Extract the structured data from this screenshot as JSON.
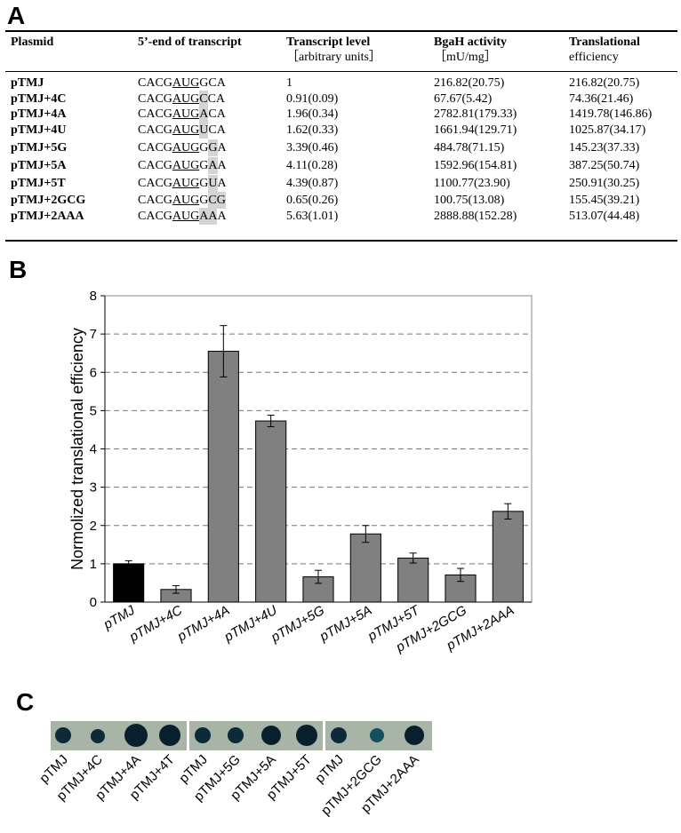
{
  "panel_labels": [
    "A",
    "B",
    "C"
  ],
  "table": {
    "header": [
      [
        "Plasmid"
      ],
      [
        "5’-end of transcript"
      ],
      [
        "Transcript level",
        "［arbitrary units］"
      ],
      [
        "BgaH activity",
        "［mU/mg］"
      ],
      [
        "Translational",
        "efficiency"
      ]
    ],
    "rows": [
      {
        "plasmid": "pTMJ",
        "sequence": [
          {
            "text": "CACG",
            "style": "plain"
          },
          {
            "text": "AUG",
            "style": "underline"
          },
          {
            "text": "GCA",
            "style": "plain"
          }
        ],
        "transcript_level": "1",
        "activity": "216.82(20.75)",
        "efficiency": "216.82(20.75)"
      },
      {
        "plasmid": "pTMJ+4C",
        "sequence": [
          {
            "text": "CACG",
            "style": "plain"
          },
          {
            "text": "AUG",
            "style": "underline"
          },
          {
            "text": "C",
            "style": "highlight"
          },
          {
            "text": "CA",
            "style": "plain"
          }
        ],
        "transcript_level": "0.91(0.09)",
        "activity": "67.67(5.42)",
        "efficiency": "74.36(21.46)"
      },
      {
        "plasmid": "pTMJ+4A",
        "sequence": [
          {
            "text": "CACG",
            "style": "plain"
          },
          {
            "text": "AUG",
            "style": "underline"
          },
          {
            "text": "A",
            "style": "highlight"
          },
          {
            "text": "CA",
            "style": "plain"
          }
        ],
        "transcript_level": "1.96(0.34)",
        "activity": "2782.81(179.33)",
        "efficiency": "1419.78(146.86)"
      },
      {
        "plasmid": "pTMJ+4U",
        "sequence": [
          {
            "text": "CACG",
            "style": "plain"
          },
          {
            "text": "AUG",
            "style": "underline"
          },
          {
            "text": "U",
            "style": "highlight"
          },
          {
            "text": "CA",
            "style": "plain"
          }
        ],
        "transcript_level": "1.62(0.33)",
        "activity": "1661.94(129.71)",
        "efficiency": "1025.87(34.17)"
      },
      {
        "plasmid": "pTMJ+5G",
        "sequence": [
          {
            "text": "CACG",
            "style": "plain"
          },
          {
            "text": "AUG",
            "style": "underline"
          },
          {
            "text": "G",
            "style": "plain"
          },
          {
            "text": "G",
            "style": "highlight"
          },
          {
            "text": "A",
            "style": "plain"
          }
        ],
        "transcript_level": "3.39(0.46)",
        "activity": "484.78(71.15)",
        "efficiency": "145.23(37.33)"
      },
      {
        "plasmid": "pTMJ+5A",
        "sequence": [
          {
            "text": "CACG",
            "style": "plain"
          },
          {
            "text": "AUG",
            "style": "underline"
          },
          {
            "text": "G",
            "style": "plain"
          },
          {
            "text": "A",
            "style": "highlight"
          },
          {
            "text": "A",
            "style": "plain"
          }
        ],
        "transcript_level": "4.11(0.28)",
        "activity": "1592.96(154.81)",
        "efficiency": "387.25(50.74)"
      },
      {
        "plasmid": "pTMJ+5T",
        "sequence": [
          {
            "text": "CACG",
            "style": "plain"
          },
          {
            "text": "AUG",
            "style": "underline"
          },
          {
            "text": "G",
            "style": "plain"
          },
          {
            "text": "U",
            "style": "highlight"
          },
          {
            "text": "A",
            "style": "plain"
          }
        ],
        "transcript_level": "4.39(0.87)",
        "activity": "1100.77(23.90)",
        "efficiency": "250.91(30.25)"
      },
      {
        "plasmid": "pTMJ+2GCG",
        "sequence": [
          {
            "text": "CACG",
            "style": "plain"
          },
          {
            "text": "AUG",
            "style": "underline"
          },
          {
            "text": "G",
            "style": "plain"
          },
          {
            "text": "CG",
            "style": "highlight"
          }
        ],
        "transcript_level": "0.65(0.26)",
        "activity": "100.75(13.08)",
        "efficiency": "155.45(39.21)"
      },
      {
        "plasmid": "pTMJ+2AAA",
        "sequence": [
          {
            "text": "CACG",
            "style": "plain"
          },
          {
            "text": "AUG",
            "style": "underline"
          },
          {
            "text": "AA",
            "style": "highlight"
          },
          {
            "text": "A",
            "style": "plain"
          }
        ],
        "transcript_level": "5.63(1.01)",
        "activity": "2888.88(152.28)",
        "efficiency": "513.07(44.48)"
      }
    ]
  },
  "chart_data": {
    "type": "bar",
    "y_label": "Normolized translational efficiency",
    "categories": [
      "pTMJ",
      "pTMJ+4C",
      "pTMJ+4A",
      "pTMJ+4U",
      "pTMJ+5G",
      "pTMJ+5A",
      "pTMJ+5T",
      "pTMJ+2GCG",
      "pTMJ+2AAA"
    ],
    "values": [
      1,
      0.33,
      6.55,
      4.73,
      0.66,
      1.78,
      1.15,
      0.71,
      2.37
    ],
    "errors": [
      0.08,
      0.1,
      0.67,
      0.15,
      0.17,
      0.22,
      0.13,
      0.17,
      0.2
    ],
    "colors": [
      "#000000",
      "#808080",
      "#808080",
      "#808080",
      "#808080",
      "#808080",
      "#808080",
      "#808080",
      "#808080"
    ],
    "ylim": [
      0,
      8
    ],
    "yticks": [
      0,
      1,
      2,
      3,
      4,
      5,
      6,
      7,
      8
    ],
    "grid": true
  },
  "dot_assay": {
    "groups": [
      [
        "pTMJ",
        "pTMJ+4C",
        "pTMJ+4A",
        "pTMJ+4T"
      ],
      [
        "pTMJ",
        "pTMJ+5G",
        "pTMJ+5A",
        "pTMJ+5T"
      ],
      [
        "pTMJ",
        "pTMJ+2GCG",
        "pTMJ+2AAA"
      ]
    ]
  }
}
